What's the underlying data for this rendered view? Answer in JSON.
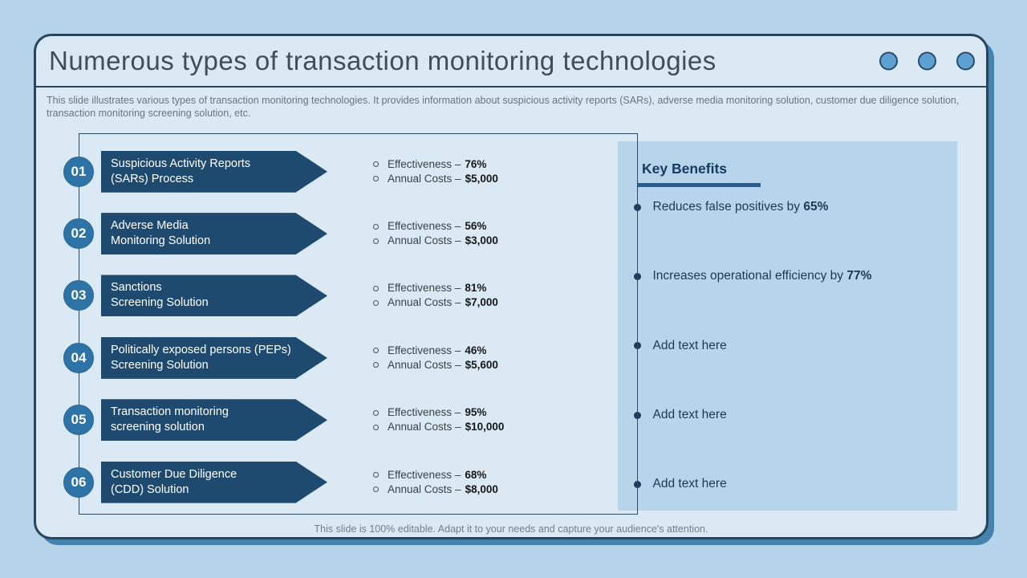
{
  "title_bar": {
    "title": "Numerous types of transaction monitoring technologies"
  },
  "subtitle": "This slide illustrates various types of transaction monitoring technologies. It provides information about suspicious activity reports (SARs), adverse media monitoring solution, customer due diligence solution, transaction monitoring screening solution, etc.",
  "technologies": [
    {
      "number": "01",
      "name1": "Suspicious Activity Reports",
      "name2": "(SARs) Process",
      "effectiveness_label": "Effectiveness –",
      "effectiveness_value": "76%",
      "costs_label": "Annual Costs –",
      "costs_value": "$5,000"
    },
    {
      "number": "02",
      "name1": "Adverse Media",
      "name2": "Monitoring Solution",
      "effectiveness_label": "Effectiveness –",
      "effectiveness_value": "56%",
      "costs_label": "Annual Costs –",
      "costs_value": "$3,000"
    },
    {
      "number": "03",
      "name1": "Sanctions",
      "name2": "Screening Solution",
      "effectiveness_label": "Effectiveness –",
      "effectiveness_value": "81%",
      "costs_label": "Annual Costs –",
      "costs_value": "$7,000"
    },
    {
      "number": "04",
      "name1": "Politically exposed persons (PEPs)",
      "name2": "Screening Solution",
      "effectiveness_label": "Effectiveness –",
      "effectiveness_value": "46%",
      "costs_label": "Annual Costs –",
      "costs_value": "$5,600"
    },
    {
      "number": "05",
      "name1": "Transaction monitoring",
      "name2": "screening solution",
      "effectiveness_label": "Effectiveness –",
      "effectiveness_value": "95%",
      "costs_label": "Annual Costs –",
      "costs_value": "$10,000"
    },
    {
      "number": "06",
      "name1": "Customer Due Diligence",
      "name2": "(CDD) Solution",
      "effectiveness_label": "Effectiveness –",
      "effectiveness_value": "68%",
      "costs_label": "Annual Costs –",
      "costs_value": "$8,000"
    }
  ],
  "key_benefits": {
    "title": "Key Benefits",
    "items": [
      {
        "text": "Reduces false positives by ",
        "highlight": "65%"
      },
      {
        "text": "Increases operational efficiency by ",
        "highlight": "77%"
      },
      {
        "text": "Add text here",
        "highlight": ""
      },
      {
        "text": "Add text here",
        "highlight": ""
      },
      {
        "text": "Add text here",
        "highlight": ""
      }
    ]
  },
  "footer": "This slide is 100% editable. Adapt it to your needs and capture your audience's attention.",
  "colors": {
    "page_background": "#B6D4E9",
    "slide_background": "#DBE9F4",
    "border_dark": "#27455C",
    "slide_shadow_blue": "#4583AE",
    "banner_navy": "#1E4A6F",
    "number_circle_blue": "#2E73A6",
    "benefits_panel_blue": "#B7D5EA",
    "benefits_heading_navy": "#163A63",
    "benefits_underline_blue": "#2D5B8E",
    "title_dot_fill": "#5FA0D3"
  }
}
